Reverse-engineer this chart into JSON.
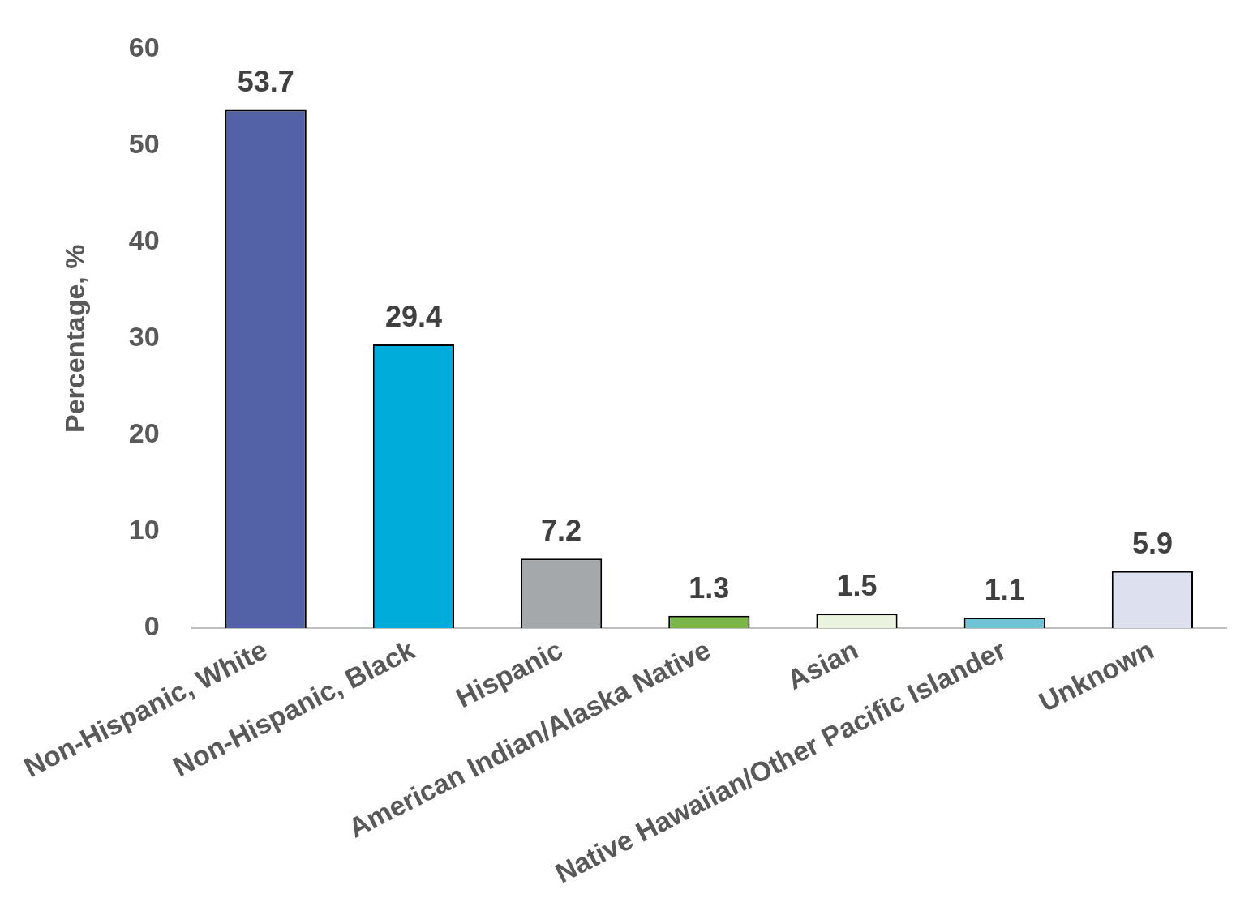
{
  "chart_data": {
    "type": "bar",
    "ylabel": "Percentage, %",
    "categories": [
      "Non-Hispanic, White",
      "Non-Hispanic, Black",
      "Hispanic",
      "American Indian/Alaska Native",
      "Asian",
      "Native Hawaiian/Other Pacific Islander",
      "Unknown"
    ],
    "values": [
      53.7,
      29.4,
      7.2,
      1.3,
      1.5,
      1.1,
      5.9
    ],
    "colors": [
      "#5361a6",
      "#00acd9",
      "#a5a8ab",
      "#7ab648",
      "#e9f3dd",
      "#70c4d6",
      "#dde1ef"
    ],
    "ylim": [
      0,
      60
    ],
    "yticks": [
      0,
      10,
      20,
      30,
      40,
      50,
      60
    ],
    "grid": false,
    "legend": false,
    "data_labels": true
  }
}
